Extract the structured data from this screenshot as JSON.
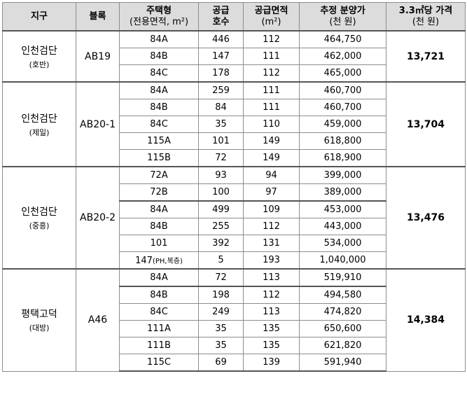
{
  "headers": {
    "region": "지구",
    "block": "블록",
    "type_line1": "주택형",
    "type_line2": "(전용면적, m²)",
    "supply_line1": "공급",
    "supply_line2": "호수",
    "area_line1": "공급면적",
    "area_line2": "(m²)",
    "price_line1": "추정 분양가",
    "price_line2": "(천 원)",
    "unit_line1": "3.3㎡당 가격",
    "unit_line2": "(천 원)"
  },
  "groups": [
    {
      "region": "인천검단",
      "builder": "(호반)",
      "block": "AB19",
      "unit_price": "13,721",
      "rows": [
        {
          "type": "84A",
          "qty": "446",
          "area": "112",
          "price": "464,750"
        },
        {
          "type": "84B",
          "qty": "147",
          "area": "111",
          "price": "462,000"
        },
        {
          "type": "84C",
          "qty": "178",
          "area": "112",
          "price": "465,000"
        }
      ]
    },
    {
      "region": "인천검단",
      "builder": "(제일)",
      "block": "AB20-1",
      "unit_price": "13,704",
      "rows": [
        {
          "type": "84A",
          "qty": "259",
          "area": "111",
          "price": "460,700"
        },
        {
          "type": "84B",
          "qty": "84",
          "area": "111",
          "price": "460,700"
        },
        {
          "type": "84C",
          "qty": "35",
          "area": "110",
          "price": "459,000"
        },
        {
          "type": "115A",
          "qty": "101",
          "area": "149",
          "price": "618,800"
        },
        {
          "type": "115B",
          "qty": "72",
          "area": "149",
          "price": "618,900"
        }
      ]
    },
    {
      "region": "인천검단",
      "builder": "(중흥)",
      "block": "AB20-2",
      "unit_price": "13,476",
      "rows": [
        {
          "type": "72A",
          "qty": "93",
          "area": "94",
          "price": "399,000"
        },
        {
          "type": "72B",
          "qty": "100",
          "area": "97",
          "price": "389,000"
        },
        {
          "type": "84A",
          "qty": "499",
          "area": "109",
          "price": "453,000"
        },
        {
          "type": "84B",
          "qty": "255",
          "area": "112",
          "price": "443,000"
        },
        {
          "type": "101",
          "qty": "392",
          "area": "131",
          "price": "534,000"
        },
        {
          "type": "147",
          "type_note": "(PH,복층)",
          "qty": "5",
          "area": "193",
          "price": "1,040,000"
        }
      ]
    },
    {
      "region": "평택고덕",
      "builder": "(대방)",
      "block": "A46",
      "unit_price": "14,384",
      "rows": [
        {
          "type": "84A",
          "qty": "72",
          "area": "113",
          "price": "519,910"
        },
        {
          "type": "84B",
          "qty": "198",
          "area": "112",
          "price": "494,580"
        },
        {
          "type": "84C",
          "qty": "249",
          "area": "113",
          "price": "474,820"
        },
        {
          "type": "111A",
          "qty": "35",
          "area": "135",
          "price": "650,600"
        },
        {
          "type": "111B",
          "qty": "35",
          "area": "135",
          "price": "621,820"
        },
        {
          "type": "115C",
          "qty": "69",
          "area": "139",
          "price": "591,940"
        }
      ]
    }
  ]
}
